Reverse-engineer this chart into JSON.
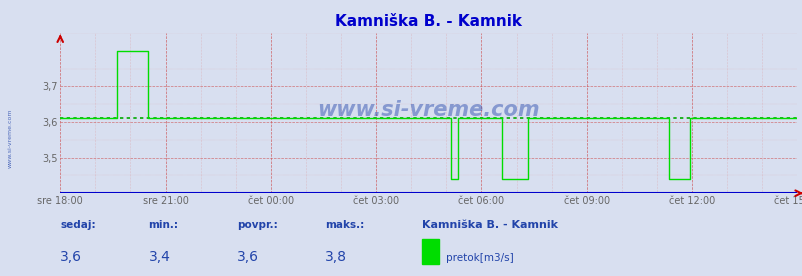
{
  "title": "Kamniška B. - Kamnik",
  "title_color": "#0000cc",
  "bg_color": "#d8dff0",
  "plot_bg_color": "#d8dff0",
  "line_color": "#00dd00",
  "avg_line_color": "#00aa00",
  "avg_value": 3.61,
  "y_min": 3.4,
  "y_max": 3.85,
  "y_ticks": [
    3.5,
    3.6,
    3.7
  ],
  "x_labels": [
    "sre 18:00",
    "sre 21:00",
    "čet 00:00",
    "čet 03:00",
    "čet 06:00",
    "čet 09:00",
    "čet 12:00",
    "čet 15:00"
  ],
  "x_label_color": "#666666",
  "grid_color_major": "#cc4444",
  "grid_color_minor": "#dd8888",
  "watermark": "www.si-vreme.com",
  "watermark_color": "#2244aa",
  "stats_labels": [
    "sedaj:",
    "min.:",
    "povpr.:",
    "maks.:"
  ],
  "stats_values": [
    "3,6",
    "3,4",
    "3,6",
    "3,8"
  ],
  "legend_label": "Kamniška B. - Kamnik",
  "legend_unit": "pretok[m3/s]",
  "bottom_label_color": "#2244aa",
  "axis_arrow_color": "#cc0000",
  "blue_line_color": "#0000cc",
  "n_points": 288,
  "data_values": [
    3.61,
    3.61,
    3.61,
    3.61,
    3.61,
    3.61,
    3.61,
    3.61,
    3.61,
    3.61,
    3.61,
    3.61,
    3.61,
    3.61,
    3.61,
    3.61,
    3.61,
    3.61,
    3.61,
    3.61,
    3.61,
    3.61,
    3.8,
    3.8,
    3.8,
    3.8,
    3.8,
    3.8,
    3.8,
    3.8,
    3.8,
    3.8,
    3.8,
    3.8,
    3.61,
    3.61,
    3.61,
    3.61,
    3.61,
    3.61,
    3.61,
    3.61,
    3.61,
    3.61,
    3.61,
    3.61,
    3.61,
    3.61,
    3.61,
    3.61,
    3.61,
    3.61,
    3.61,
    3.61,
    3.61,
    3.61,
    3.61,
    3.61,
    3.61,
    3.61,
    3.61,
    3.61,
    3.61,
    3.61,
    3.61,
    3.61,
    3.61,
    3.61,
    3.61,
    3.61,
    3.61,
    3.61,
    3.61,
    3.61,
    3.61,
    3.61,
    3.61,
    3.61,
    3.61,
    3.61,
    3.61,
    3.61,
    3.61,
    3.61,
    3.61,
    3.61,
    3.61,
    3.61,
    3.61,
    3.61,
    3.61,
    3.61,
    3.61,
    3.61,
    3.61,
    3.61,
    3.61,
    3.61,
    3.61,
    3.61,
    3.61,
    3.61,
    3.61,
    3.61,
    3.61,
    3.61,
    3.61,
    3.61,
    3.61,
    3.61,
    3.61,
    3.61,
    3.61,
    3.61,
    3.61,
    3.61,
    3.61,
    3.61,
    3.61,
    3.61,
    3.61,
    3.61,
    3.61,
    3.61,
    3.61,
    3.61,
    3.61,
    3.61,
    3.61,
    3.61,
    3.61,
    3.61,
    3.61,
    3.61,
    3.61,
    3.61,
    3.61,
    3.61,
    3.61,
    3.61,
    3.61,
    3.61,
    3.61,
    3.61,
    3.61,
    3.61,
    3.61,
    3.61,
    3.61,
    3.61,
    3.61,
    3.61,
    3.44,
    3.44,
    3.44,
    3.61,
    3.61,
    3.61,
    3.61,
    3.61,
    3.61,
    3.61,
    3.61,
    3.61,
    3.61,
    3.61,
    3.61,
    3.61,
    3.61,
    3.61,
    3.61,
    3.61,
    3.44,
    3.44,
    3.44,
    3.44,
    3.44,
    3.44,
    3.44,
    3.44,
    3.44,
    3.44,
    3.61,
    3.61,
    3.61,
    3.61,
    3.61,
    3.61,
    3.61,
    3.61,
    3.61,
    3.61,
    3.61,
    3.61,
    3.61,
    3.61,
    3.61,
    3.61,
    3.61,
    3.61,
    3.61,
    3.61,
    3.61,
    3.61,
    3.61,
    3.61,
    3.61,
    3.61,
    3.61,
    3.61,
    3.61,
    3.61,
    3.61,
    3.61,
    3.61,
    3.61,
    3.61,
    3.61,
    3.61,
    3.61,
    3.61,
    3.61,
    3.61,
    3.61,
    3.61,
    3.61,
    3.61,
    3.61,
    3.61,
    3.61,
    3.61,
    3.61,
    3.61,
    3.61,
    3.61,
    3.61,
    3.61,
    3.44,
    3.44,
    3.44,
    3.44,
    3.44,
    3.44,
    3.44,
    3.44,
    3.61,
    3.61,
    3.61,
    3.61,
    3.61,
    3.61,
    3.61,
    3.61,
    3.61,
    3.61,
    3.61,
    3.61,
    3.61,
    3.61,
    3.61,
    3.61,
    3.61,
    3.61,
    3.61,
    3.61,
    3.61,
    3.61,
    3.61,
    3.61,
    3.61,
    3.61,
    3.61,
    3.61,
    3.61,
    3.61,
    3.61,
    3.61,
    3.61,
    3.61,
    3.61,
    3.61,
    3.61,
    3.61,
    3.61,
    3.61,
    3.61,
    3.61,
    3.61
  ]
}
